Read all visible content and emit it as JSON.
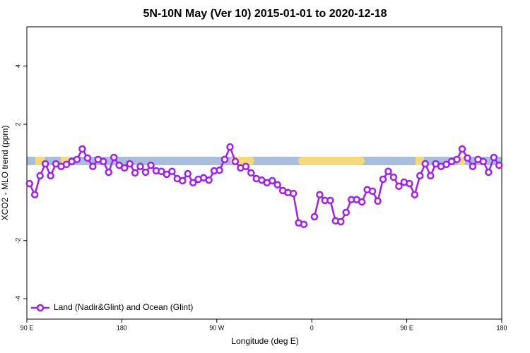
{
  "chart_data": {
    "type": "line",
    "title": "5N-10N May (Ver 10)   2015-01-01 to 2020-12-18",
    "xlabel": "Longitude (deg E)",
    "ylabel": "XCO2 - MLO trend (ppm)",
    "xlim": [
      90,
      540
    ],
    "xticks": [
      {
        "value": 90,
        "label": "90 E"
      },
      180,
      {
        "value": 270,
        "label": "90 W"
      },
      {
        "value": 360,
        "label": "0"
      },
      {
        "value": 450,
        "label": "90 E"
      },
      {
        "value": 540,
        "label": "180"
      }
    ],
    "ylim": [
      -4.7,
      5.35
    ],
    "yticks": [
      -4,
      -2,
      2,
      4
    ],
    "legend": "bottom-left",
    "x": [
      92.5,
      97.5,
      102.5,
      107.5,
      112.5,
      117.5,
      122.5,
      127.5,
      132.5,
      137.5,
      142.5,
      147.5,
      152.5,
      157.5,
      162.5,
      167.5,
      172.5,
      177.5,
      182.5,
      187.5,
      192.5,
      197.5,
      202.5,
      207.5,
      212.5,
      217.5,
      222.5,
      227.5,
      232.5,
      237.5,
      242.5,
      247.5,
      252.5,
      257.5,
      262.5,
      267.5,
      272.5,
      277.5,
      282.5,
      287.5,
      292.5,
      297.5,
      302.5,
      307.5,
      312.5,
      317.5,
      322.5,
      327.5,
      332.5,
      337.5,
      342.5,
      347.5,
      352.5,
      357.5,
      362.5,
      367.5,
      372.5,
      377.5,
      382.5,
      387.5,
      392.5,
      397.5,
      402.5,
      407.5,
      412.5,
      417.5,
      422.5,
      427.5,
      432.5,
      437.5,
      442.5,
      447.5,
      452.5,
      457.5,
      462.5,
      467.5,
      472.5,
      477.5,
      482.5,
      487.5,
      492.5,
      497.5,
      502.5,
      507.5,
      512.5,
      517.5,
      522.5,
      527.5,
      532.5,
      537.5
    ],
    "series": [
      {
        "name": "Land (Nadir&Glint) and Ocean (Glint)",
        "color": "#a020f0",
        "values": [
          -0.04,
          -0.42,
          0.23,
          0.64,
          0.23,
          0.64,
          0.55,
          0.62,
          0.72,
          0.79,
          1.15,
          0.84,
          0.55,
          0.79,
          0.72,
          0.35,
          0.86,
          0.59,
          0.5,
          0.64,
          0.33,
          0.55,
          0.35,
          0.59,
          0.4,
          0.38,
          0.28,
          0.38,
          0.13,
          0.06,
          0.3,
          -0.01,
          0.11,
          0.16,
          0.08,
          0.4,
          0.42,
          0.79,
          1.22,
          0.72,
          0.5,
          0.55,
          0.33,
          0.13,
          0.08,
          -0.01,
          0.06,
          -0.08,
          -0.28,
          -0.35,
          -0.38,
          -1.39,
          -1.44,
          null,
          -1.18,
          -0.42,
          -0.62,
          -0.62,
          -1.32,
          -1.35,
          -1.03,
          -0.59,
          -0.59,
          -0.67,
          -0.25,
          -0.3,
          -0.64,
          0.11,
          0.38,
          0.18,
          -0.13,
          0.01,
          -0.04,
          -0.42,
          0.23,
          0.64,
          0.23,
          0.64,
          0.55,
          0.62,
          0.72,
          0.79,
          1.15,
          0.84,
          0.55,
          0.79,
          0.72,
          0.35,
          0.86,
          0.59
        ]
      }
    ]
  }
}
